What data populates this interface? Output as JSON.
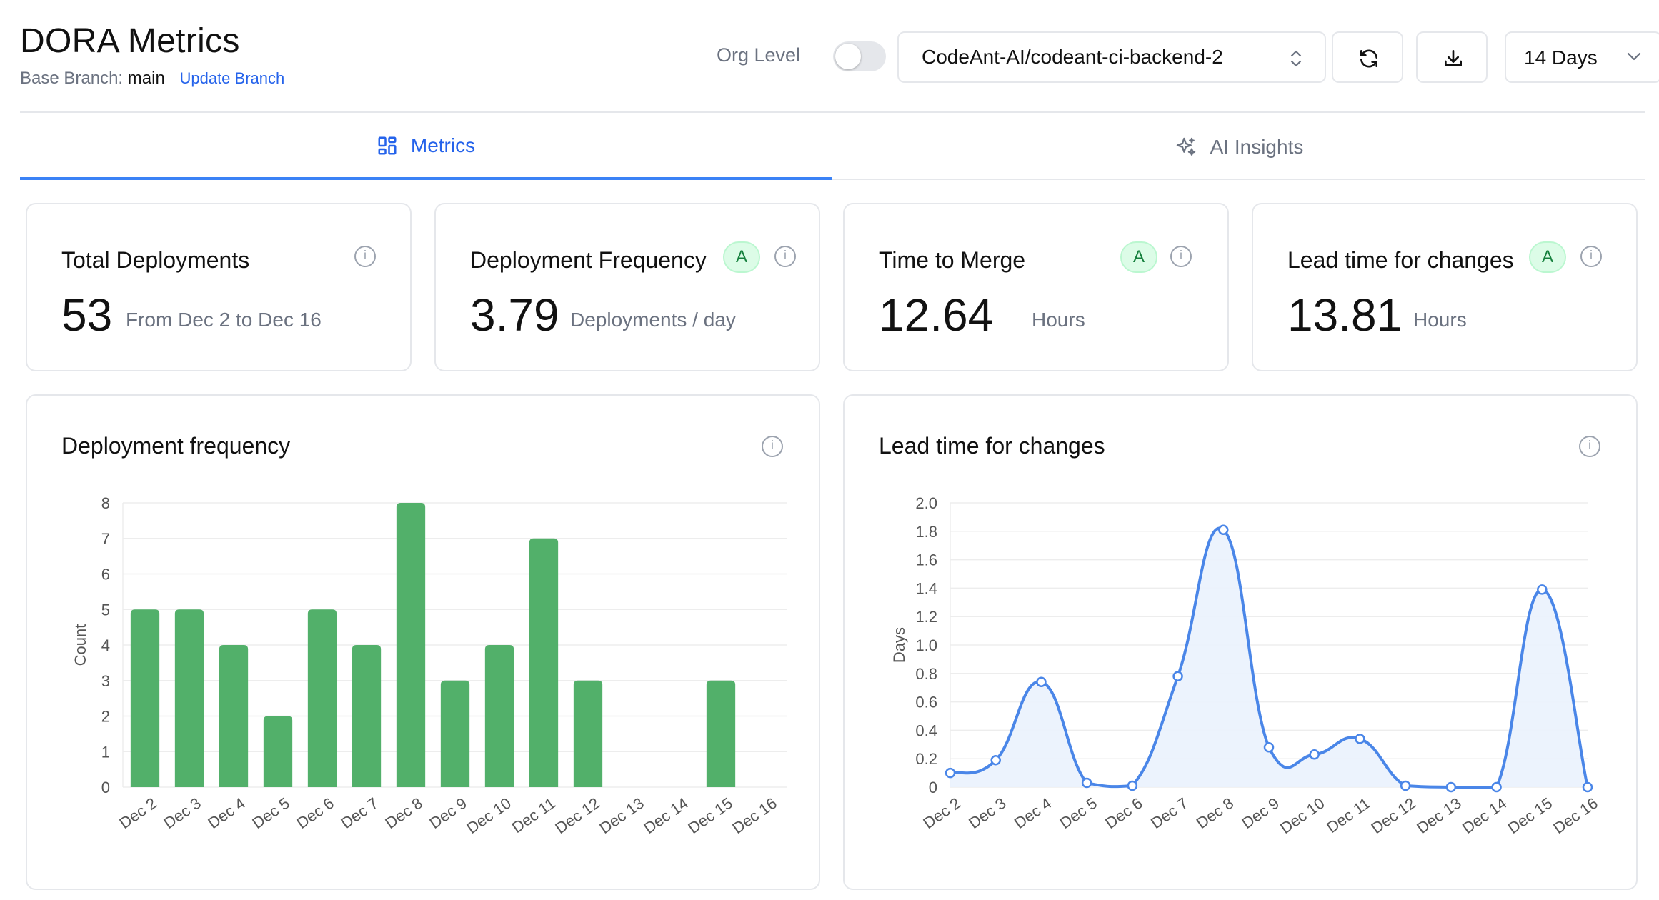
{
  "header": {
    "title": "DORA Metrics",
    "base_branch_label": "Base Branch:",
    "base_branch_value": "main",
    "update_branch_link": "Update Branch",
    "org_level_label": "Org Level",
    "org_level_on": false,
    "repo_select_value": "CodeAnt-AI/codeant-ci-backend-2",
    "days_select_value": "14 Days"
  },
  "tabs": [
    {
      "label": "Metrics",
      "active": true
    },
    {
      "label": "AI Insights",
      "active": false
    }
  ],
  "stats": [
    {
      "label": "Total Deployments",
      "value": "53",
      "unit": "From Dec 2 to Dec 16",
      "badge": ""
    },
    {
      "label": "Deployment Frequency",
      "value": "3.79",
      "unit": "Deployments / day",
      "badge": "A"
    },
    {
      "label": "Time to Merge",
      "value": "12.64",
      "unit": "Hours",
      "badge": "A"
    },
    {
      "label": "Lead time for changes",
      "value": "13.81",
      "unit": "Hours",
      "badge": "A"
    }
  ],
  "colors": {
    "accent": "#3b82f6",
    "bar": "#52b06a",
    "line": "#4a86e8",
    "badge_bg": "#dcfce7",
    "badge_text": "#15803d"
  },
  "chart_data": [
    {
      "type": "bar",
      "title": "Deployment frequency",
      "xlabel": "",
      "ylabel": "Count",
      "ylim": [
        0,
        8
      ],
      "yticks": [
        0,
        1,
        2,
        3,
        4,
        5,
        6,
        7,
        8
      ],
      "categories": [
        "Dec 2",
        "Dec 3",
        "Dec 4",
        "Dec 5",
        "Dec 6",
        "Dec 7",
        "Dec 8",
        "Dec 9",
        "Dec 10",
        "Dec 11",
        "Dec 12",
        "Dec 13",
        "Dec 14",
        "Dec 15",
        "Dec 16"
      ],
      "values": [
        5,
        5,
        4,
        2,
        5,
        4,
        8,
        3,
        4,
        7,
        3,
        0,
        0,
        3,
        0
      ]
    },
    {
      "type": "area",
      "title": "Lead time for changes",
      "xlabel": "",
      "ylabel": "Days",
      "ylim": [
        0,
        2.0
      ],
      "yticks": [
        "0",
        "0.2",
        "0.4",
        "0.6",
        "0.8",
        "1.0",
        "1.2",
        "1.4",
        "1.6",
        "1.8",
        "2.0"
      ],
      "categories": [
        "Dec 2",
        "Dec 3",
        "Dec 4",
        "Dec 5",
        "Dec 6",
        "Dec 7",
        "Dec 8",
        "Dec 9",
        "Dec 10",
        "Dec 11",
        "Dec 12",
        "Dec 13",
        "Dec 14",
        "Dec 15",
        "Dec 16"
      ],
      "values": [
        0.1,
        0.19,
        0.74,
        0.03,
        0.01,
        0.78,
        1.81,
        0.28,
        0.23,
        0.34,
        0.01,
        0.0,
        0.0,
        1.39,
        0.0
      ]
    }
  ]
}
